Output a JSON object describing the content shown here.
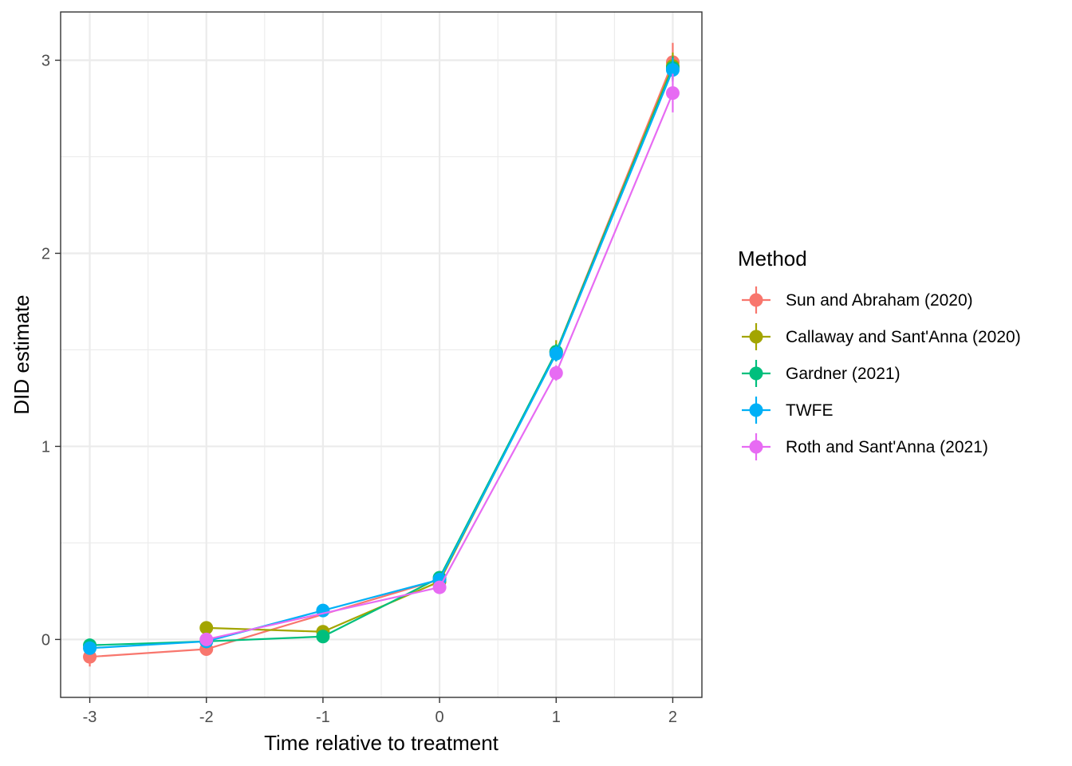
{
  "chart_data": {
    "type": "line",
    "xlabel": "Time relative to treatment",
    "ylabel": "DID estimate",
    "x": [
      -3,
      -2,
      -1,
      0,
      1,
      2
    ],
    "x_tick_labels": [
      "-3",
      "-2",
      "-1",
      "0",
      "1",
      "2"
    ],
    "y_ticks": [
      0,
      1,
      2,
      3
    ],
    "y_tick_labels": [
      "0",
      "1",
      "2",
      "3"
    ],
    "xlim": [
      -3.25,
      2.25
    ],
    "ylim": [
      -0.3,
      3.25
    ],
    "grid": true,
    "legend": {
      "title": "Method",
      "placement": "right"
    },
    "series": [
      {
        "name": "Sun and Abraham (2020)",
        "color": "#F8766D",
        "points": [
          {
            "x": -3,
            "y": -0.09,
            "lo": -0.14,
            "hi": -0.04
          },
          {
            "x": -2,
            "y": -0.05,
            "lo": -0.08,
            "hi": -0.02
          },
          {
            "x": 0,
            "y": 0.31,
            "lo": 0.27,
            "hi": 0.35
          },
          {
            "x": 1,
            "y": 1.49,
            "lo": 1.45,
            "hi": 1.53
          },
          {
            "x": 2,
            "y": 2.99,
            "lo": 2.89,
            "hi": 3.09
          }
        ]
      },
      {
        "name": "Callaway and Sant'Anna (2020)",
        "color": "#A3A500",
        "points": [
          {
            "x": -2,
            "y": 0.06,
            "lo": 0.03,
            "hi": 0.09
          },
          {
            "x": -1,
            "y": 0.04,
            "lo": 0.01,
            "hi": 0.07
          },
          {
            "x": 0,
            "y": 0.3,
            "lo": 0.27,
            "hi": 0.33
          },
          {
            "x": 1,
            "y": 1.49,
            "lo": 1.44,
            "hi": 1.55
          },
          {
            "x": 2,
            "y": 2.97,
            "lo": 2.9,
            "hi": 3.04
          }
        ]
      },
      {
        "name": "Gardner (2021)",
        "color": "#00BF7D",
        "points": [
          {
            "x": -3,
            "y": -0.03,
            "lo": -0.06,
            "hi": 0.0
          },
          {
            "x": -2,
            "y": -0.01,
            "lo": -0.03,
            "hi": 0.01
          },
          {
            "x": -1,
            "y": 0.015,
            "lo": -0.005,
            "hi": 0.035
          },
          {
            "x": 0,
            "y": 0.32,
            "lo": 0.29,
            "hi": 0.35
          },
          {
            "x": 1,
            "y": 1.49,
            "lo": 1.45,
            "hi": 1.53
          },
          {
            "x": 2,
            "y": 2.96,
            "lo": 2.9,
            "hi": 3.02
          }
        ]
      },
      {
        "name": "TWFE",
        "color": "#00B0F6",
        "points": [
          {
            "x": -3,
            "y": -0.045,
            "lo": -0.07,
            "hi": -0.02
          },
          {
            "x": -2,
            "y": -0.01,
            "lo": -0.03,
            "hi": 0.01
          },
          {
            "x": -1,
            "y": 0.15,
            "lo": 0.12,
            "hi": 0.18
          },
          {
            "x": 0,
            "y": 0.31,
            "lo": 0.28,
            "hi": 0.34
          },
          {
            "x": 1,
            "y": 1.48,
            "lo": 1.44,
            "hi": 1.52
          },
          {
            "x": 2,
            "y": 2.95,
            "lo": 2.89,
            "hi": 3.01
          }
        ]
      },
      {
        "name": "Roth and Sant'Anna (2021)",
        "color": "#E76BF3",
        "points": [
          {
            "x": -2,
            "y": 0.0,
            "lo": -0.03,
            "hi": 0.03
          },
          {
            "x": 0,
            "y": 0.27,
            "lo": 0.24,
            "hi": 0.3
          },
          {
            "x": 1,
            "y": 1.38,
            "lo": 1.34,
            "hi": 1.42
          },
          {
            "x": 2,
            "y": 2.83,
            "lo": 2.73,
            "hi": 2.93
          }
        ]
      }
    ]
  }
}
